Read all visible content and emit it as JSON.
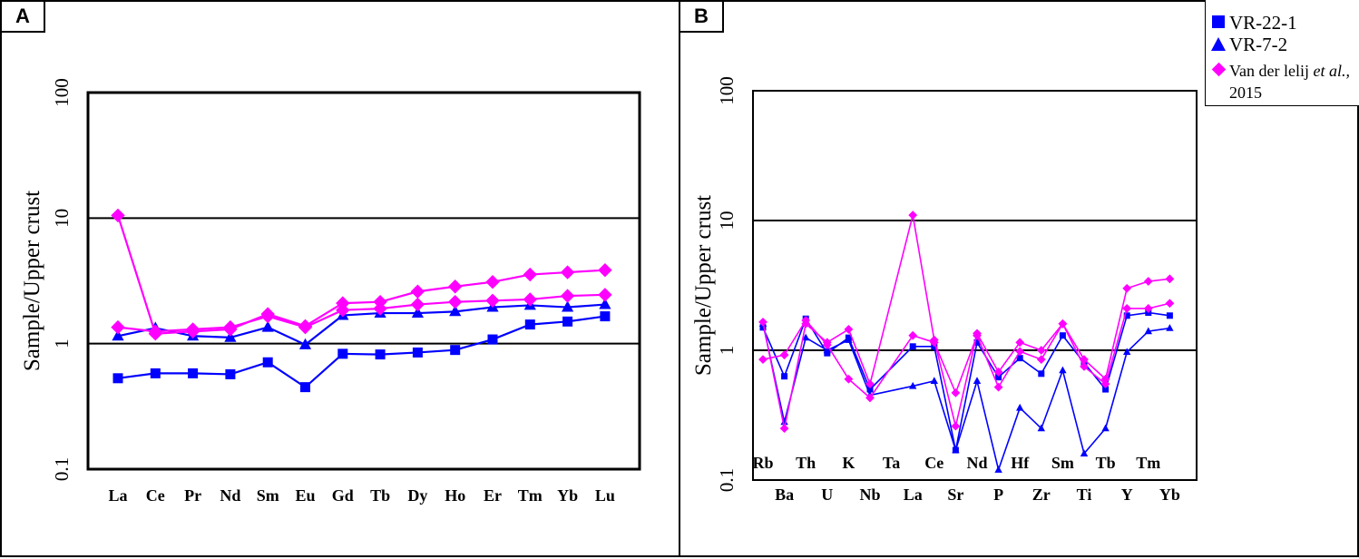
{
  "chart_data": [
    {
      "id": "A",
      "panel_label": "A",
      "type": "line",
      "yscale": "log",
      "ylim": [
        0.1,
        100
      ],
      "ylabel": "Sample/Upper crust",
      "ytick_labels": [
        "0.1",
        "1",
        "10",
        "100"
      ],
      "categories": [
        "La",
        "Ce",
        "Pr",
        "Nd",
        "Sm",
        "Eu",
        "Gd",
        "Tb",
        "Dy",
        "Ho",
        "Er",
        "Tm",
        "Yb",
        "Lu"
      ],
      "series": [
        {
          "name": "VR-22-1",
          "marker": "square",
          "color": "#0000ff",
          "values": [
            0.53,
            0.58,
            0.58,
            0.57,
            0.71,
            0.45,
            0.83,
            0.82,
            0.85,
            0.89,
            1.08,
            1.42,
            1.5,
            1.65
          ]
        },
        {
          "name": "VR-7-2",
          "marker": "triangle",
          "color": "#0000ff",
          "values": [
            1.15,
            1.33,
            1.15,
            1.12,
            1.35,
            0.98,
            1.68,
            1.75,
            1.75,
            1.8,
            1.95,
            2.02,
            1.95,
            2.05
          ]
        },
        {
          "name": "Van der lelij et al., 2015 (a)",
          "marker": "diamond",
          "color": "#ff00ff",
          "values": [
            10.5,
            1.2,
            1.25,
            1.3,
            1.72,
            1.38,
            2.1,
            2.15,
            2.6,
            2.85,
            3.1,
            3.55,
            3.7,
            3.85
          ]
        },
        {
          "name": "Van der lelij et al., 2015 (b)",
          "marker": "diamond",
          "color": "#ff00ff",
          "values": [
            1.35,
            1.25,
            1.3,
            1.35,
            1.65,
            1.35,
            1.85,
            1.9,
            2.05,
            2.15,
            2.2,
            2.25,
            2.4,
            2.45
          ]
        }
      ]
    },
    {
      "id": "B",
      "panel_label": "B",
      "type": "line",
      "yscale": "log",
      "ylim": [
        0.1,
        100
      ],
      "ylabel": "Sample/Upper crust",
      "ytick_labels": [
        "0.1",
        "1",
        "10",
        "100"
      ],
      "categories": [
        "Rb",
        "Ba",
        "Th",
        "U",
        "K",
        "Nb",
        "Ta",
        "La",
        "Ce",
        "Sr",
        "Nd",
        "P",
        "Hf",
        "Zr",
        "Sm",
        "Ti",
        "Tb",
        "Y",
        "Tm",
        "Yb"
      ],
      "series": [
        {
          "name": "VR-22-1",
          "marker": "square",
          "color": "#0000ff",
          "values": [
            1.5,
            0.63,
            1.75,
            0.95,
            1.25,
            0.5,
            null,
            1.07,
            1.07,
            0.17,
            1.15,
            0.62,
            0.87,
            0.66,
            1.3,
            0.8,
            0.5,
            1.85,
            1.95,
            1.85
          ]
        },
        {
          "name": "VR-7-2",
          "marker": "triangle",
          "color": "#0000ff",
          "values": [
            1.6,
            0.28,
            1.25,
            1.0,
            1.2,
            0.45,
            null,
            0.53,
            0.58,
            0.17,
            0.58,
            0.12,
            0.36,
            0.25,
            0.7,
            0.16,
            0.25,
            0.97,
            1.4,
            1.48
          ]
        },
        {
          "name": "Van der lelij et al., 2015 (a)",
          "marker": "diamond",
          "color": "#ff00ff",
          "values": [
            1.65,
            0.25,
            1.6,
            1.15,
            1.45,
            0.55,
            null,
            11.0,
            1.2,
            0.26,
            1.35,
            0.68,
            1.15,
            1.0,
            1.6,
            0.85,
            0.6,
            3.0,
            3.4,
            3.55
          ]
        },
        {
          "name": "Van der lelij et al., 2015 (b)",
          "marker": "diamond",
          "color": "#ff00ff",
          "values": [
            0.85,
            0.92,
            1.7,
            1.1,
            0.6,
            0.43,
            null,
            1.3,
            1.15,
            0.47,
            1.3,
            0.52,
            0.98,
            0.85,
            1.6,
            0.75,
            0.55,
            2.1,
            2.1,
            2.3
          ]
        }
      ]
    }
  ],
  "legend": [
    {
      "marker": "square",
      "color": "#0000ff",
      "label": "VR-22-1"
    },
    {
      "marker": "triangle",
      "color": "#0000ff",
      "label": "VR-7-2"
    },
    {
      "marker": "diamond",
      "color": "#ff00ff",
      "label": "Van der lelij ",
      "label_italic": "et al.,",
      "label_tail": " 2015"
    }
  ]
}
